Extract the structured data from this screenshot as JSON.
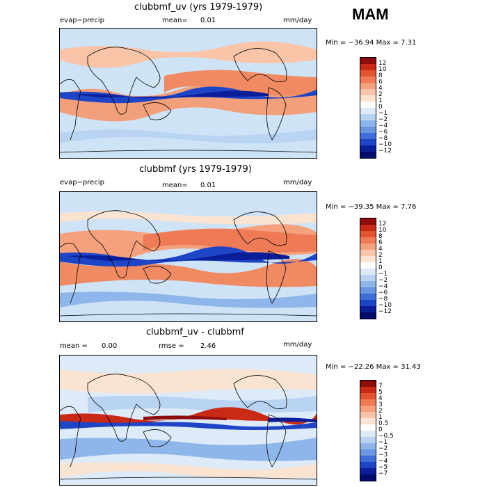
{
  "season": "MAM",
  "palette": {
    "warm": [
      "#fbe3d2",
      "#f9c4a8",
      "#f5a17d",
      "#ef7a56",
      "#e4532f",
      "#c92a16",
      "#8e0d0a"
    ],
    "cool": [
      "#ddeaf8",
      "#b9d4f3",
      "#8fb6ea",
      "#6a95e0",
      "#3f6ed8",
      "#1f45c7",
      "#0a1e9a",
      "#050d6a"
    ],
    "neutral": "#ffffff",
    "outline": "#000000"
  },
  "panels": [
    {
      "title": "clubbmf_uv (yrs 1979-1979)",
      "left_text": "evap−precip",
      "stat_label": "mean=",
      "stat_value": "0.01",
      "units": "mm/day",
      "minmax": "Min = −36.94  Max =    7.31",
      "colorbar_labels": [
        "12",
        "10",
        "8",
        "6",
        "4",
        "2",
        "1",
        "0",
        "−1",
        "−2",
        "−4",
        "−6",
        "−8",
        "−10",
        "−12"
      ]
    },
    {
      "title": "clubbmf (yrs 1979-1979)",
      "left_text": "evap−precip",
      "stat_label": "mean=",
      "stat_value": "0.01",
      "units": "mm/day",
      "minmax": "Min = −39.35  Max =    7.76",
      "colorbar_labels": [
        "12",
        "10",
        "8",
        "6",
        "4",
        "2",
        "1",
        "0",
        "−1",
        "−2",
        "−4",
        "−6",
        "−8",
        "−10",
        "−12"
      ]
    },
    {
      "title": "clubbmf_uv - clubbmf",
      "left_text": "mean =",
      "left_value": "0.00",
      "stat_label": "rmse =",
      "stat_value": "2.46",
      "units": "mm/day",
      "minmax": "Min = −22.26  Max =   31.43",
      "colorbar_labels": [
        "7",
        "5",
        "4",
        "3",
        "2",
        "1",
        "0.5",
        "0",
        "−0.5",
        "−1",
        "−2",
        "−3",
        "−4",
        "−5",
        "−7"
      ]
    }
  ]
}
